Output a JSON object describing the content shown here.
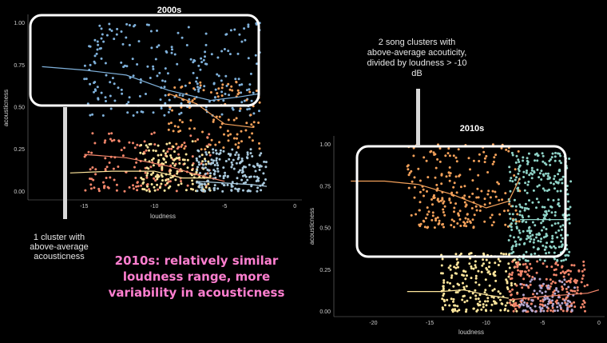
{
  "chart_data": [
    {
      "type": "scatter",
      "title": "2000s",
      "xlabel": "loudness",
      "ylabel": "acousticness",
      "xlim": [
        -19,
        0.5
      ],
      "ylim": [
        -0.05,
        1.05
      ],
      "xticks": [
        -15,
        -10,
        -5,
        0
      ],
      "yticks": [
        0.0,
        0.25,
        0.5,
        0.75,
        1.0
      ],
      "xtick_labels": [
        "-15",
        "-10",
        "-5",
        "0"
      ],
      "ytick_labels": [
        "0.00",
        "0.25",
        "0.50",
        "0.75",
        "1.00"
      ],
      "grid": false,
      "clusters": [
        {
          "color": "#7fb1db",
          "x_range": [
            -15,
            -2.5
          ],
          "y_range": [
            0.45,
            1.0
          ],
          "n": 240
        },
        {
          "color": "#f4a15a",
          "x_range": [
            -9,
            -2.5
          ],
          "y_range": [
            0.25,
            0.65
          ],
          "n": 110
        },
        {
          "color": "#f3866b",
          "x_range": [
            -15,
            -6
          ],
          "y_range": [
            0.0,
            0.35
          ],
          "n": 150
        },
        {
          "color": "#ffe69c",
          "x_range": [
            -11,
            -6
          ],
          "y_range": [
            0.0,
            0.3
          ],
          "n": 140
        },
        {
          "color": "#a9c9dd",
          "x_range": [
            -7,
            -2
          ],
          "y_range": [
            0.0,
            0.25
          ],
          "n": 180
        }
      ],
      "trend_lines": [
        {
          "color": "#7fb1db",
          "x": [
            -18,
            -15,
            -12,
            -9,
            -6,
            -4,
            -2.5
          ],
          "y": [
            0.74,
            0.72,
            0.69,
            0.6,
            0.54,
            0.56,
            0.58
          ]
        },
        {
          "color": "#f4a15a",
          "x": [
            -9,
            -7,
            -5,
            -3
          ],
          "y": [
            0.58,
            0.52,
            0.4,
            0.38
          ]
        },
        {
          "color": "#f3866b",
          "x": [
            -15,
            -12,
            -9,
            -7,
            -5
          ],
          "y": [
            0.22,
            0.2,
            0.15,
            0.1,
            0.06
          ]
        },
        {
          "color": "#ffe69c",
          "x": [
            -16,
            -13,
            -10,
            -8,
            -6
          ],
          "y": [
            0.11,
            0.12,
            0.12,
            0.08,
            0.08
          ]
        },
        {
          "color": "#a9c9dd",
          "x": [
            -7,
            -5,
            -3,
            -2
          ],
          "y": [
            0.06,
            0.05,
            0.04,
            0.03
          ]
        }
      ]
    },
    {
      "type": "scatter",
      "title": "2010s",
      "xlabel": "loudness",
      "ylabel": "acousticness",
      "xlim": [
        -23.5,
        0.5
      ],
      "ylim": [
        -0.03,
        1.05
      ],
      "xticks": [
        -20,
        -15,
        -10,
        -5,
        0
      ],
      "yticks": [
        0.0,
        0.25,
        0.5,
        0.75,
        1.0
      ],
      "xtick_labels": [
        "-20",
        "-15",
        "-10",
        "-5",
        "0"
      ],
      "ytick_labels": [
        "0.00",
        "0.25",
        "0.50",
        "0.75",
        "1.00"
      ],
      "grid": false,
      "clusters": [
        {
          "color": "#f4a15a",
          "x_range": [
            -17,
            -7
          ],
          "y_range": [
            0.5,
            1.0
          ],
          "n": 230
        },
        {
          "color": "#8fd3c7",
          "x_range": [
            -8,
            -2.5
          ],
          "y_range": [
            0.3,
            0.95
          ],
          "n": 330
        },
        {
          "color": "#ffe69c",
          "x_range": [
            -14,
            -7
          ],
          "y_range": [
            0.0,
            0.35
          ],
          "n": 210
        },
        {
          "color": "#f3866b",
          "x_range": [
            -8,
            -1
          ],
          "y_range": [
            0.0,
            0.3
          ],
          "n": 200
        },
        {
          "color": "#b3a7d2",
          "x_range": [
            -7,
            -2
          ],
          "y_range": [
            0.0,
            0.2
          ],
          "n": 90
        }
      ],
      "trend_lines": [
        {
          "color": "#f4a15a",
          "x": [
            -22,
            -19,
            -16,
            -13,
            -10,
            -8,
            -7
          ],
          "y": [
            0.78,
            0.78,
            0.76,
            0.7,
            0.62,
            0.66,
            0.8
          ]
        },
        {
          "color": "#8fd3c7",
          "x": [
            -7,
            -5,
            -3
          ],
          "y": [
            0.55,
            0.55,
            0.55
          ]
        },
        {
          "color": "#ffe69c",
          "x": [
            -17,
            -14,
            -12,
            -10,
            -8
          ],
          "y": [
            0.12,
            0.12,
            0.13,
            0.1,
            0.08
          ]
        },
        {
          "color": "#f3866b",
          "x": [
            -8,
            -5,
            -3,
            -1,
            0
          ],
          "y": [
            0.07,
            0.09,
            0.1,
            0.11,
            0.13
          ]
        }
      ]
    }
  ],
  "annotations": {
    "right_note": [
      "2 song clusters with",
      "above-average acouticity,",
      "divided by loudness > -10",
      "dB"
    ],
    "left_note": [
      "1 cluster with",
      "above-average",
      "acousticness"
    ],
    "center_note": [
      "2010s: relatively similar",
      "loudness range, more",
      "variability in acousticness"
    ]
  }
}
